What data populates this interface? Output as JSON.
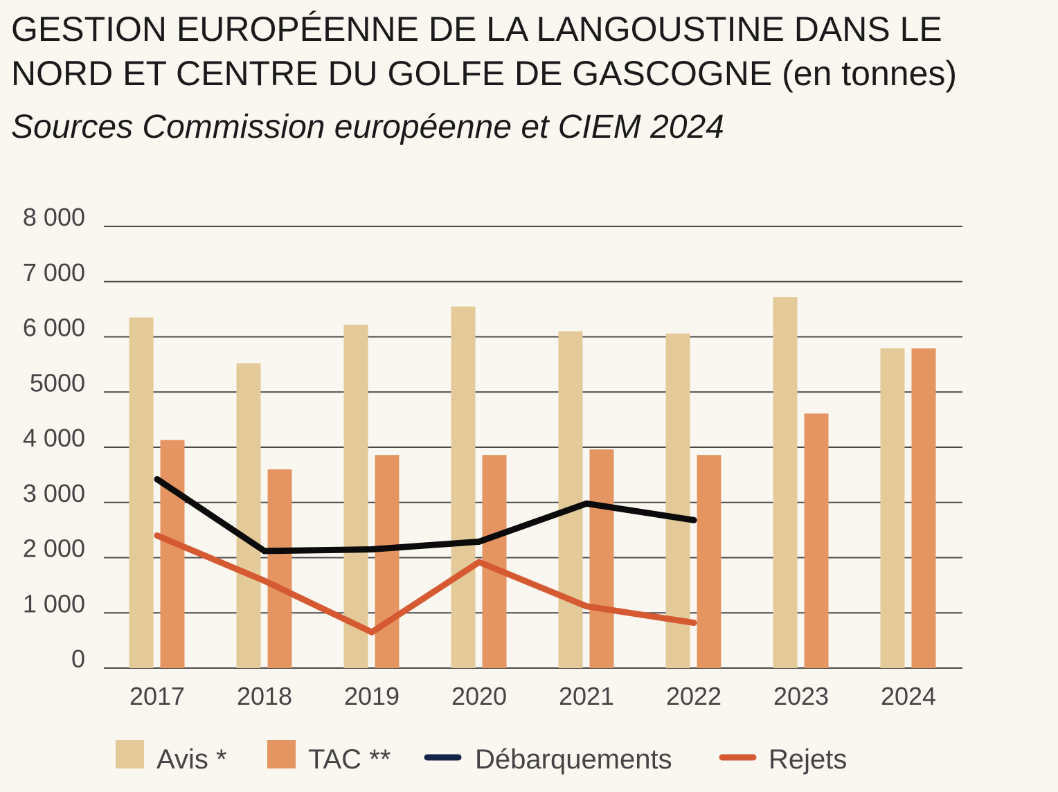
{
  "title_main": "GESTION EUROPÉENNE DE LA LANGOUSTINE DANS LE NORD ET CENTRE DU GOLFE DE GASCOGNE",
  "title_unit": "(en tonnes)",
  "subtitle": "Sources Commission européenne et CIEM 2024",
  "colors": {
    "background": "#faf7f1",
    "avis": "#e3ca98",
    "tac": "#e49562",
    "debarquements": "#0b0b0b",
    "debarquements_legend": "#15254a",
    "rejets": "#d65a31",
    "grid": "#4a4a4a"
  },
  "chart_data": {
    "type": "bar",
    "categories": [
      "2017",
      "2018",
      "2019",
      "2020",
      "2021",
      "2022",
      "2023",
      "2024"
    ],
    "ylim": [
      0,
      8000
    ],
    "yticks": [
      0,
      1000,
      2000,
      3000,
      4000,
      5000,
      6000,
      7000,
      8000
    ],
    "ytick_labels": [
      "0",
      "1 000",
      "2 000",
      "3 000",
      "4 000",
      "5000",
      "6 000",
      "7 000",
      "8 000"
    ],
    "grid": true,
    "legend_position": "bottom",
    "series": [
      {
        "name": "Avis *",
        "type": "bar",
        "values": [
          6350,
          5520,
          6220,
          6550,
          6100,
          6060,
          6720,
          5790
        ]
      },
      {
        "name": "TAC **",
        "type": "bar",
        "values": [
          4130,
          3600,
          3860,
          3860,
          3960,
          3860,
          4610,
          5790
        ]
      },
      {
        "name": "Débarquements",
        "type": "line",
        "values": [
          3420,
          2120,
          2150,
          2290,
          2980,
          2680,
          null,
          null
        ]
      },
      {
        "name": "Rejets",
        "type": "line",
        "values": [
          2400,
          1580,
          650,
          1920,
          1120,
          820,
          null,
          null
        ]
      }
    ]
  }
}
